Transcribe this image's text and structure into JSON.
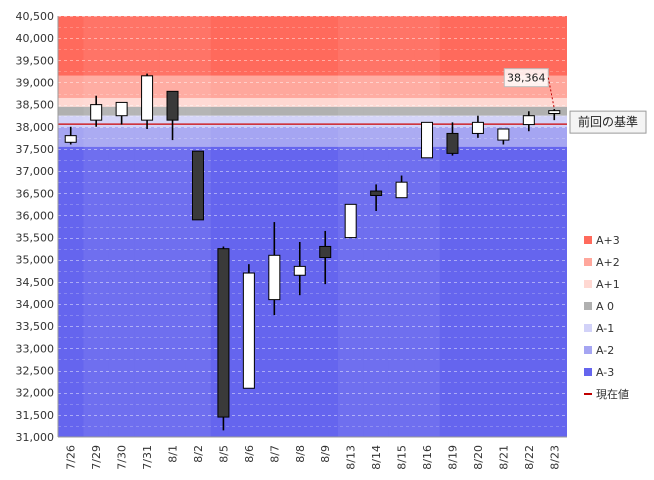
{
  "chart_data": {
    "type": "candlestick",
    "categories": [
      "7/26",
      "7/29",
      "7/30",
      "7/31",
      "8/1",
      "8/2",
      "8/5",
      "8/6",
      "8/7",
      "8/8",
      "8/9",
      "8/13",
      "8/14",
      "8/15",
      "8/16",
      "8/19",
      "8/20",
      "8/21",
      "8/22",
      "8/23"
    ],
    "candles": [
      {
        "open": 37650,
        "high": 38000,
        "low": 37600,
        "close": 37800
      },
      {
        "open": 38150,
        "high": 38700,
        "low": 38000,
        "close": 38500
      },
      {
        "open": 38250,
        "high": 38500,
        "low": 38050,
        "close": 38550
      },
      {
        "open": 38150,
        "high": 39200,
        "low": 37950,
        "close": 39150
      },
      {
        "open": 38800,
        "high": 38800,
        "low": 37700,
        "close": 38150
      },
      {
        "open": 37450,
        "high": 37450,
        "low": 35900,
        "close": 35900
      },
      {
        "open": 35250,
        "high": 35300,
        "low": 31150,
        "close": 31450
      },
      {
        "open": 32100,
        "high": 34900,
        "low": 32100,
        "close": 34700
      },
      {
        "open": 34100,
        "high": 35850,
        "low": 33750,
        "close": 35100
      },
      {
        "open": 34650,
        "high": 35400,
        "low": 34200,
        "close": 34850
      },
      {
        "open": 35300,
        "high": 35650,
        "low": 34450,
        "close": 35050
      },
      {
        "open": 35500,
        "high": 36250,
        "low": 35500,
        "close": 36250
      },
      {
        "open": 36550,
        "high": 36700,
        "low": 36100,
        "close": 36450
      },
      {
        "open": 36400,
        "high": 36900,
        "low": 36400,
        "close": 36750
      },
      {
        "open": 37300,
        "high": 38100,
        "low": 37300,
        "close": 38100
      },
      {
        "open": 37850,
        "high": 38100,
        "low": 37350,
        "close": 37400
      },
      {
        "open": 37850,
        "high": 38250,
        "low": 37750,
        "close": 38100
      },
      {
        "open": 37700,
        "high": 37950,
        "low": 37600,
        "close": 37950
      },
      {
        "open": 38050,
        "high": 38350,
        "low": 37900,
        "close": 38250
      },
      {
        "open": 38300,
        "high": 38400,
        "low": 38150,
        "close": 38364
      }
    ],
    "y_ticks": [
      "31,000",
      "31,500",
      "32,000",
      "32,500",
      "33,000",
      "33,500",
      "34,000",
      "34,500",
      "35,000",
      "35,500",
      "36,000",
      "36,500",
      "37,000",
      "37,500",
      "38,000",
      "38,500",
      "39,000",
      "39,500",
      "40,000",
      "40,500"
    ],
    "ylim": [
      31000,
      40500
    ],
    "reference_value": 38060,
    "reference_label": "前回の基準",
    "current_value": 38364,
    "current_value_label": "38,364",
    "bands": [
      {
        "name": "A+3",
        "from": 39150,
        "to": 40500,
        "color": "#ff6a5c"
      },
      {
        "name": "A+2",
        "from": 38650,
        "to": 39150,
        "color": "#ffa79c"
      },
      {
        "name": "A+1",
        "from": 38450,
        "to": 38650,
        "color": "#ffd8d2"
      },
      {
        "name": "A 0",
        "from": 38250,
        "to": 38450,
        "color": "#b0b0b0"
      },
      {
        "name": "A-1",
        "from": 38000,
        "to": 38250,
        "color": "#d2d2f8"
      },
      {
        "name": "A-2",
        "from": 37550,
        "to": 38000,
        "color": "#a5a5f2"
      },
      {
        "name": "A-3",
        "from": 31000,
        "to": 37550,
        "color": "#6565ee"
      }
    ],
    "legend": {
      "placement": "right",
      "items": [
        {
          "label": "A+3",
          "color": "#ff6a5c",
          "kind": "square"
        },
        {
          "label": "A+2",
          "color": "#ffa79c",
          "kind": "square"
        },
        {
          "label": "A+1",
          "color": "#ffd8d2",
          "kind": "square"
        },
        {
          "label": "A 0",
          "color": "#b0b0b0",
          "kind": "square"
        },
        {
          "label": "A-1",
          "color": "#d2d2f8",
          "kind": "square"
        },
        {
          "label": "A-2",
          "color": "#a5a5f2",
          "kind": "square"
        },
        {
          "label": "A-3",
          "color": "#6565ee",
          "kind": "square"
        },
        {
          "label": "現在値",
          "color": "#c00000",
          "kind": "line"
        }
      ]
    },
    "grid": true,
    "colors": {
      "up_body": "#ffffff",
      "down_body": "#3a3a3a",
      "candle_outline": "#000000",
      "reference_line": "#cc0000"
    }
  }
}
